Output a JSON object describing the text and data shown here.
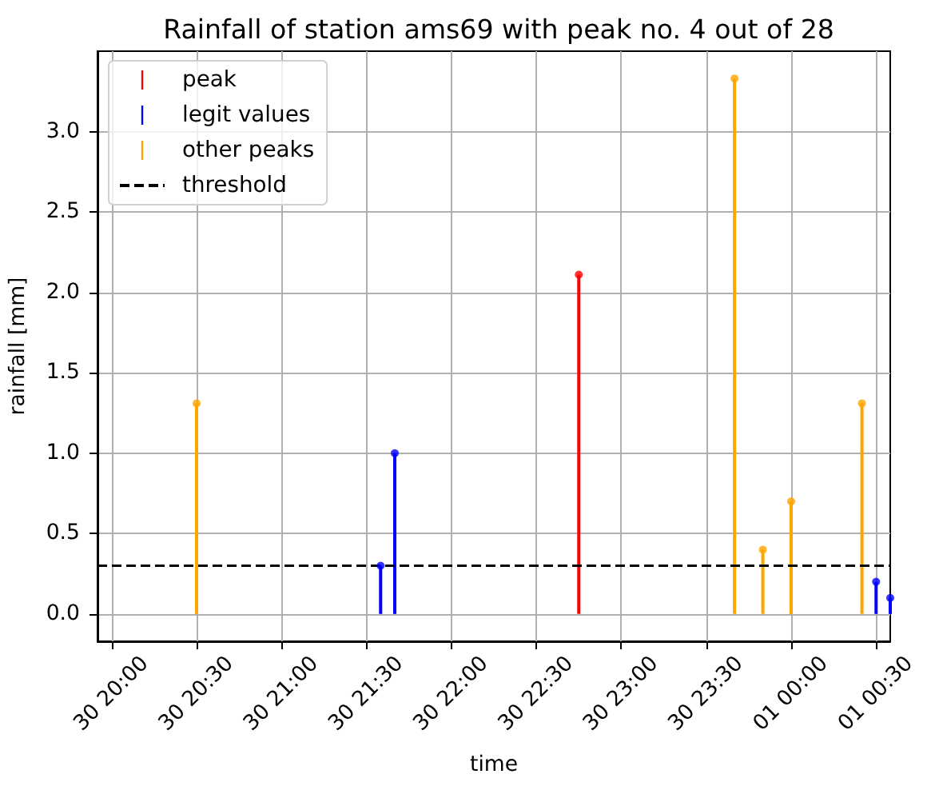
{
  "chart_data": {
    "type": "lollipop",
    "title": "Rainfall of station ams69 with peak no. 4 out of 28",
    "xlabel": "time",
    "ylabel": "rainfall [mm]",
    "series": [
      {
        "name": "peak",
        "color": "#ff0000",
        "x": [
          "--06-30T22:45"
        ],
        "values": [
          2.11
        ]
      },
      {
        "name": "legit values",
        "color": "#0000ff",
        "x": [
          "--06-30T21:35",
          "--06-30T21:40",
          "--07-01T00:30",
          "--07-01T00:35"
        ],
        "values": [
          0.3,
          1.0,
          0.2,
          0.1
        ]
      },
      {
        "name": "other peaks",
        "color": "#ffa500",
        "x": [
          "--06-30T20:30",
          "--06-30T23:40",
          "--06-30T23:50",
          "--07-01T00:00",
          "--07-01T00:25"
        ],
        "values": [
          1.31,
          3.33,
          0.4,
          0.7,
          1.31
        ]
      }
    ],
    "ref_lines": [
      {
        "axis": "y",
        "value": 0.3,
        "label": "threshold",
        "color": "#000000",
        "line_style": "dashed"
      }
    ],
    "xlim": [
      "--06-30T19:55",
      "--07-01T00:35"
    ],
    "ylim": [
      -0.17,
      3.5
    ],
    "xticks": [
      {
        "value": "--06-30T20:00",
        "label": "30 20:00"
      },
      {
        "value": "--06-30T20:30",
        "label": "30 20:30"
      },
      {
        "value": "--06-30T21:00",
        "label": "30 21:00"
      },
      {
        "value": "--06-30T21:30",
        "label": "30 21:30"
      },
      {
        "value": "--06-30T22:00",
        "label": "30 22:00"
      },
      {
        "value": "--06-30T22:30",
        "label": "30 22:30"
      },
      {
        "value": "--06-30T23:00",
        "label": "30 23:00"
      },
      {
        "value": "--06-30T23:30",
        "label": "30 23:30"
      },
      {
        "value": "--07-01T00:00",
        "label": "01 00:00"
      },
      {
        "value": "--07-01T00:30",
        "label": "01 00:30"
      }
    ],
    "yticks": [
      {
        "value": 0,
        "label": "0.0"
      },
      {
        "value": 0.5,
        "label": "0.5"
      },
      {
        "value": 1,
        "label": "1.0"
      },
      {
        "value": 1.5,
        "label": "1.5"
      },
      {
        "value": 2,
        "label": "2.0"
      },
      {
        "value": 2.5,
        "label": "2.5"
      },
      {
        "value": 3,
        "label": "3.0"
      }
    ],
    "grid": true,
    "legend": "top left",
    "marker": "circle"
  }
}
